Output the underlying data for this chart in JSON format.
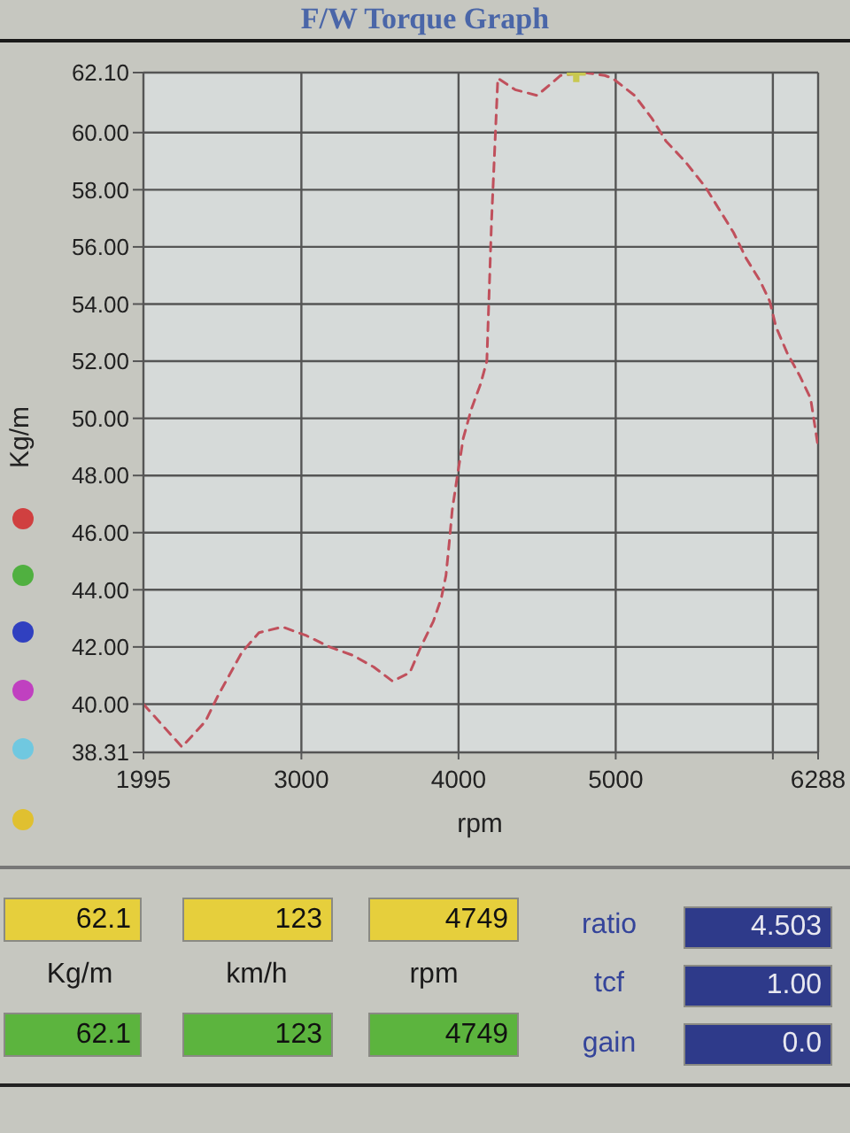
{
  "chart_data": {
    "type": "line",
    "title": "F/W Torque Graph",
    "xlabel": "rpm",
    "ylabel": "Kg/m",
    "xlim": [
      1995,
      6288
    ],
    "xticks": [
      1995,
      3000,
      4000,
      5000,
      {
        "value": 6000,
        "label": null
      },
      6288
    ],
    "ylim": [
      38.31,
      62.1
    ],
    "yticks": [
      38.31,
      {
        "value": 40,
        "label": "40.00"
      },
      {
        "value": 42,
        "label": "42.00"
      },
      {
        "value": 44,
        "label": "44.00"
      },
      {
        "value": 46,
        "label": "46.00"
      },
      {
        "value": 48,
        "label": "48.00"
      },
      {
        "value": 50,
        "label": "50.00"
      },
      {
        "value": 52,
        "label": "52.00"
      },
      {
        "value": 54,
        "label": "54.00"
      },
      {
        "value": 56,
        "label": "56.00"
      },
      {
        "value": 58,
        "label": "58.00"
      },
      {
        "value": 60,
        "label": "60.00"
      },
      {
        "value": 62.1,
        "label": "62.10"
      }
    ],
    "grid": true,
    "line_style": "dashed",
    "series": [
      {
        "color": "#c0505c",
        "x": [
          1995,
          2240,
          2390,
          2470,
          2540,
          2620,
          2730,
          2880,
          3030,
          3180,
          3330,
          3460,
          3580,
          3690,
          3760,
          3840,
          3890,
          3920,
          3940,
          3960,
          3990,
          4030,
          4080,
          4140,
          4180,
          4210,
          4250,
          4360,
          4500,
          4650,
          4800,
          4930,
          4980,
          5120,
          5230,
          5320,
          5440,
          5570,
          5660,
          5750,
          5830,
          5920,
          5980,
          6020,
          6090,
          6170,
          6240,
          6288
        ],
        "values": [
          40.0,
          38.5,
          39.4,
          40.3,
          41.0,
          41.8,
          42.5,
          42.7,
          42.4,
          42.0,
          41.7,
          41.3,
          40.8,
          41.1,
          42.0,
          42.9,
          43.7,
          44.5,
          45.6,
          46.8,
          47.9,
          49.3,
          50.3,
          51.2,
          52.0,
          56.9,
          61.9,
          61.5,
          61.3,
          62.0,
          62.1,
          62.0,
          61.9,
          61.3,
          60.5,
          59.7,
          59.0,
          58.1,
          57.3,
          56.5,
          55.6,
          54.8,
          54.1,
          53.2,
          52.3,
          51.5,
          50.7,
          49.0
        ]
      },
      {
        "type": "scatter",
        "color": "#c8c850",
        "marker": "cross",
        "x": [
          4749
        ],
        "values": [
          62.1
        ]
      }
    ],
    "annotations": [
      "62.1",
      "123",
      "4749",
      "Kg/m",
      "km/h",
      "rpm",
      "62.1",
      "123",
      "4749",
      "ratio",
      "tcf",
      "gain",
      "4.503",
      "1.00",
      "0.0"
    ]
  }
}
